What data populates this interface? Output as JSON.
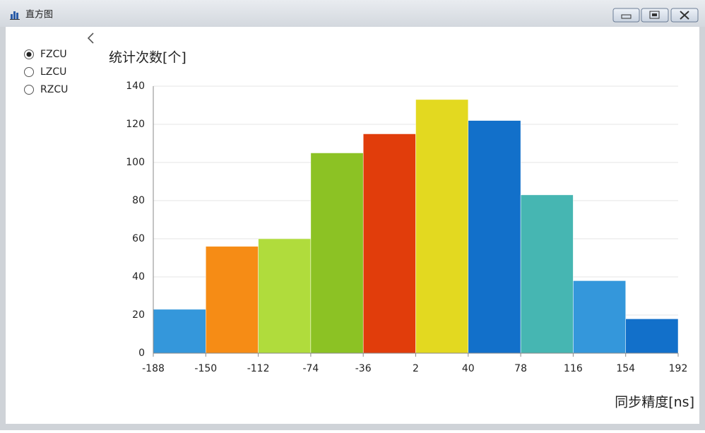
{
  "window": {
    "title": "直方图"
  },
  "options": [
    {
      "label": "FZCU",
      "checked": true
    },
    {
      "label": "LZCU",
      "checked": false
    },
    {
      "label": "RZCU",
      "checked": false
    }
  ],
  "chart_data": {
    "type": "histogram",
    "y_label": "统计次数[个]",
    "x_label": "同步精度[ns]",
    "bins": [
      -188,
      -150,
      -112,
      -74,
      -36,
      2,
      40,
      78,
      116,
      154,
      192
    ],
    "values": [
      23,
      56,
      60,
      105,
      115,
      133,
      122,
      83,
      38,
      18
    ],
    "colors": [
      "#3497db",
      "#f68c15",
      "#b0dc3c",
      "#8cc224",
      "#e13d0b",
      "#e3d920",
      "#1270ca",
      "#46b6b2",
      "#3497db",
      "#1270ca"
    ],
    "xlim": [
      -188,
      192
    ],
    "ylim": [
      0,
      140
    ],
    "yticks": [
      0,
      20,
      40,
      60,
      80,
      100,
      120,
      140
    ],
    "grid": true
  }
}
